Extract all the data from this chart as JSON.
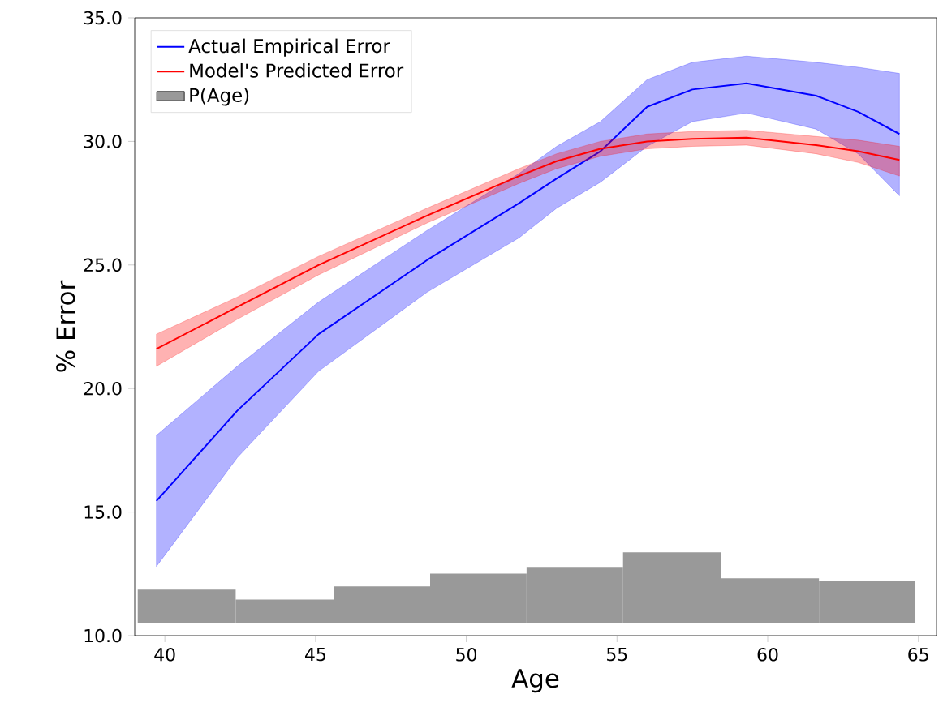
{
  "chart_data": {
    "type": "line",
    "xlabel": "Age",
    "ylabel": "% Error",
    "xlim": [
      39.0,
      65.6
    ],
    "ylim": [
      10,
      35
    ],
    "xticks": [
      40,
      45,
      50,
      55,
      60,
      65
    ],
    "yticks": [
      {
        "value": 10,
        "label": "10.0"
      },
      {
        "value": 15,
        "label": "15.0"
      },
      {
        "value": 20,
        "label": "20.0"
      },
      {
        "value": 25,
        "label": "25.0"
      },
      {
        "value": 30,
        "label": "30.0"
      },
      {
        "value": 35,
        "label": "35.0"
      }
    ],
    "legend": "top left",
    "grid": false,
    "series": [
      {
        "name": "Actual Empirical Error",
        "color": "#0000ff",
        "x": [
          39.72,
          42.4,
          45.1,
          48.7,
          51.75,
          53.0,
          54.45,
          56.0,
          57.5,
          59.3,
          61.6,
          63.0,
          64.37
        ],
        "values": [
          15.45,
          19.1,
          22.2,
          25.2,
          27.5,
          28.5,
          29.6,
          31.4,
          32.1,
          32.35,
          31.85,
          31.2,
          30.3
        ],
        "upper": [
          18.1,
          20.9,
          23.5,
          26.4,
          28.7,
          29.8,
          30.8,
          32.5,
          33.2,
          33.45,
          33.2,
          33.0,
          32.75
        ],
        "lower": [
          12.8,
          17.2,
          20.7,
          23.9,
          26.1,
          27.3,
          28.35,
          29.8,
          30.8,
          31.15,
          30.5,
          29.5,
          27.8
        ]
      },
      {
        "name": "Model's Predicted Error",
        "color": "#ff0000",
        "x": [
          39.72,
          42.4,
          45.1,
          48.7,
          51.75,
          53.0,
          54.45,
          56.0,
          57.5,
          59.3,
          61.6,
          63.0,
          64.37
        ],
        "values": [
          21.6,
          23.3,
          25.0,
          27.0,
          28.6,
          29.2,
          29.7,
          30.0,
          30.1,
          30.15,
          29.85,
          29.6,
          29.25
        ],
        "upper": [
          22.2,
          23.7,
          25.35,
          27.3,
          28.9,
          29.5,
          30.0,
          30.3,
          30.4,
          30.45,
          30.2,
          30.05,
          29.8
        ],
        "lower": [
          20.9,
          22.8,
          24.6,
          26.7,
          28.3,
          28.9,
          29.4,
          29.7,
          29.8,
          29.85,
          29.5,
          29.15,
          28.6
        ]
      },
      {
        "name": "P(Age)",
        "type": "histogram",
        "color": "#999999",
        "bins": [
          39.1,
          42.35,
          45.6,
          48.8,
          52.0,
          55.2,
          58.45,
          61.7,
          64.9
        ],
        "base": [
          10.5,
          10.5,
          10.5,
          10.5,
          10.5,
          10.5,
          10.5,
          10.5
        ],
        "values": [
          1.36,
          0.96,
          1.49,
          2.01,
          2.28,
          2.87,
          1.82,
          1.73
        ]
      }
    ]
  }
}
